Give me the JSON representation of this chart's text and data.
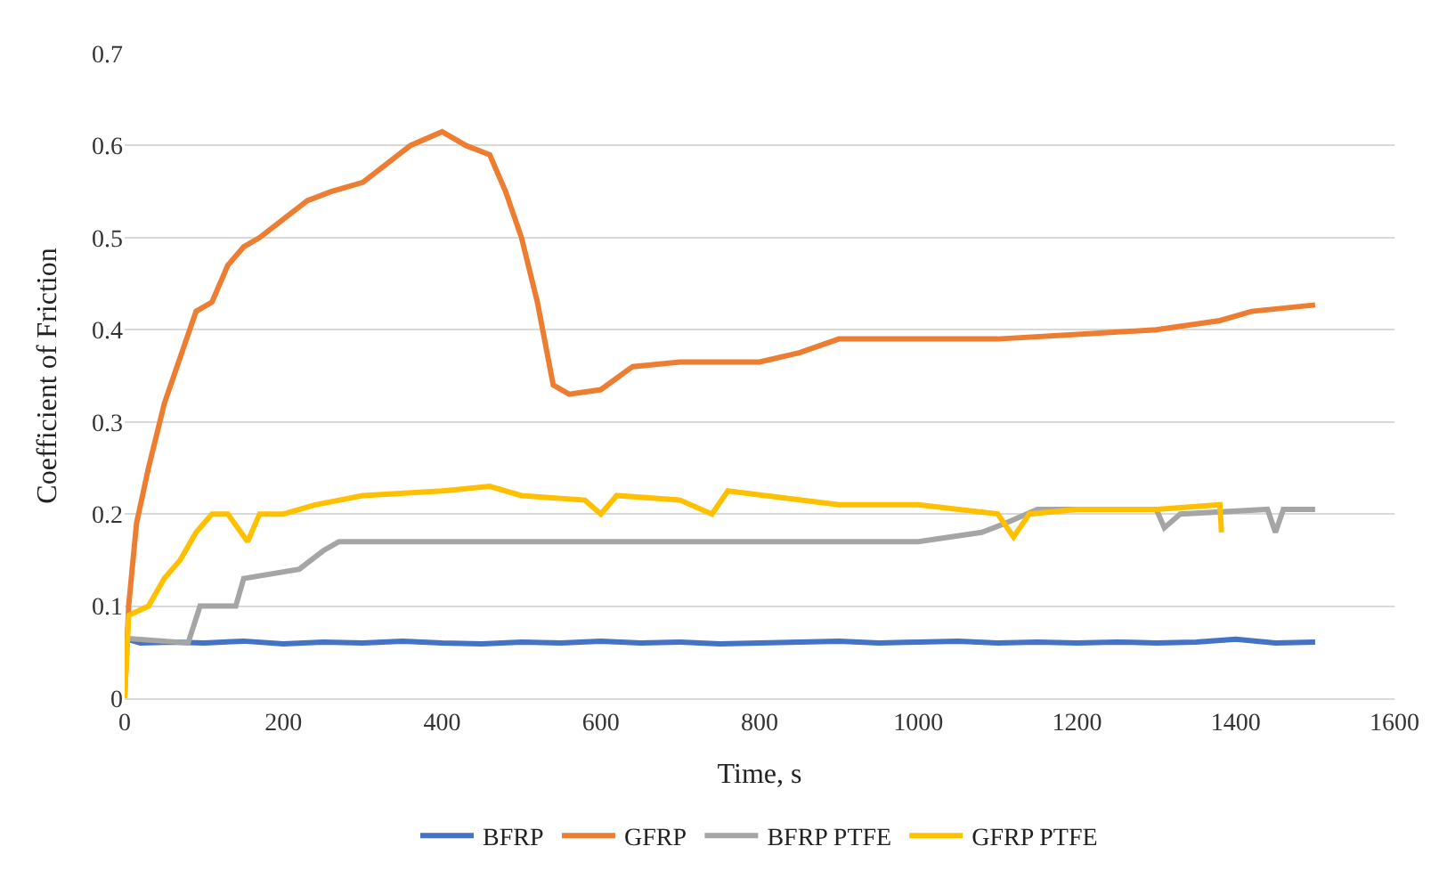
{
  "chart_data": {
    "type": "line",
    "xlabel": "Time, s",
    "ylabel": "Coefficient of Friction",
    "xlim": [
      0,
      1600
    ],
    "xticks": [
      0,
      200,
      400,
      600,
      800,
      1000,
      1200,
      1400,
      1600
    ],
    "ylim": [
      0,
      0.7
    ],
    "yticks": [
      0,
      0.1,
      0.2,
      0.3,
      0.4,
      0.5,
      0.6,
      0.7
    ],
    "grid": "y",
    "legend": "bottom",
    "marker": "none",
    "line_style": "solid",
    "series": [
      {
        "name": "BFRP",
        "color": "#4472c4",
        "x": [
          0,
          20,
          60,
          100,
          150,
          200,
          250,
          300,
          350,
          400,
          450,
          500,
          550,
          600,
          650,
          700,
          750,
          800,
          850,
          900,
          950,
          1000,
          1050,
          1100,
          1150,
          1200,
          1250,
          1300,
          1350,
          1400,
          1450,
          1500
        ],
        "values": [
          0.065,
          0.06,
          0.061,
          0.06,
          0.062,
          0.059,
          0.061,
          0.06,
          0.062,
          0.06,
          0.059,
          0.061,
          0.06,
          0.062,
          0.06,
          0.061,
          0.059,
          0.06,
          0.061,
          0.062,
          0.06,
          0.061,
          0.062,
          0.06,
          0.061,
          0.06,
          0.061,
          0.06,
          0.061,
          0.064,
          0.06,
          0.061
        ]
      },
      {
        "name": "GFRP",
        "color": "#ed7d31",
        "x": [
          0,
          5,
          15,
          30,
          50,
          70,
          90,
          110,
          130,
          150,
          170,
          200,
          230,
          260,
          300,
          330,
          360,
          400,
          430,
          460,
          480,
          500,
          520,
          540,
          560,
          600,
          640,
          700,
          800,
          850,
          900,
          1000,
          1100,
          1200,
          1300,
          1380,
          1420,
          1500
        ],
        "values": [
          0,
          0.1,
          0.19,
          0.25,
          0.32,
          0.37,
          0.42,
          0.43,
          0.47,
          0.49,
          0.5,
          0.52,
          0.54,
          0.55,
          0.56,
          0.58,
          0.6,
          0.615,
          0.6,
          0.59,
          0.55,
          0.5,
          0.43,
          0.34,
          0.33,
          0.335,
          0.36,
          0.365,
          0.365,
          0.375,
          0.39,
          0.39,
          0.39,
          0.395,
          0.4,
          0.41,
          0.42,
          0.427
        ]
      },
      {
        "name": "BFRP PTFE",
        "color": "#a5a5a5",
        "x": [
          0,
          80,
          95,
          140,
          150,
          220,
          250,
          270,
          400,
          600,
          800,
          1000,
          1080,
          1110,
          1150,
          1300,
          1310,
          1330,
          1440,
          1450,
          1460,
          1500
        ],
        "values": [
          0.065,
          0.06,
          0.1,
          0.1,
          0.13,
          0.14,
          0.16,
          0.17,
          0.17,
          0.17,
          0.17,
          0.17,
          0.18,
          0.19,
          0.205,
          0.205,
          0.185,
          0.2,
          0.205,
          0.18,
          0.205,
          0.205
        ]
      },
      {
        "name": "GFRP PTFE",
        "color": "#ffc000",
        "x": [
          0,
          5,
          30,
          50,
          70,
          90,
          110,
          130,
          155,
          170,
          200,
          240,
          300,
          400,
          460,
          500,
          580,
          600,
          620,
          700,
          740,
          760,
          900,
          1000,
          1100,
          1120,
          1140,
          1200,
          1300,
          1380,
          1382
        ],
        "values": [
          0,
          0.09,
          0.1,
          0.13,
          0.15,
          0.18,
          0.2,
          0.2,
          0.17,
          0.2,
          0.2,
          0.21,
          0.22,
          0.225,
          0.23,
          0.22,
          0.215,
          0.2,
          0.22,
          0.215,
          0.2,
          0.225,
          0.21,
          0.21,
          0.2,
          0.175,
          0.2,
          0.205,
          0.205,
          0.21,
          0.18
        ]
      }
    ]
  }
}
